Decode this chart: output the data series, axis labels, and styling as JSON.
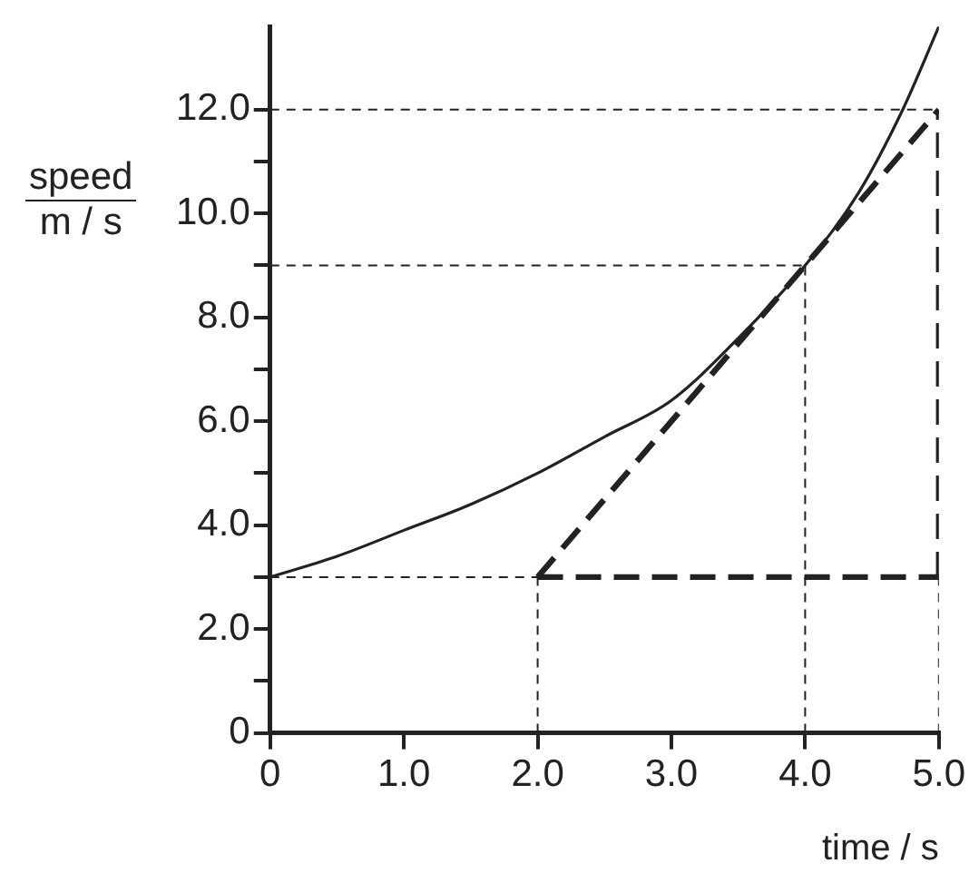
{
  "chart_data": {
    "type": "line",
    "xlabel": "time / s",
    "ylabel": "speed\nm / s",
    "xlim": [
      0,
      5
    ],
    "ylim": [
      0,
      13.6
    ],
    "xticks": [
      0,
      {
        "value": 1,
        "label": "1.0"
      },
      {
        "value": 2,
        "label": "2.0"
      },
      {
        "value": 3,
        "label": "3.0"
      },
      {
        "value": 4,
        "label": "4.0"
      },
      {
        "value": 5,
        "label": "5.0"
      }
    ],
    "yticks": [
      0,
      {
        "value": 1,
        "label": null
      },
      {
        "value": 2,
        "label": "2.0"
      },
      {
        "value": 3,
        "label": null
      },
      {
        "value": 4,
        "label": "4.0"
      },
      {
        "value": 5,
        "label": null
      },
      {
        "value": 6,
        "label": "6.0"
      },
      {
        "value": 7,
        "label": null
      },
      {
        "value": 8,
        "label": "8.0"
      },
      {
        "value": 9,
        "label": null
      },
      {
        "value": 10,
        "label": "10.0"
      },
      {
        "value": 11,
        "label": null
      },
      {
        "value": 12,
        "label": "12.0"
      }
    ],
    "grid": false,
    "legend": false,
    "marker": "none",
    "series": [
      {
        "type": "line",
        "color": "#222222",
        "line_style": "solid",
        "x": [
          0,
          0.5,
          1,
          1.5,
          2,
          2.5,
          3,
          3.5,
          4,
          4.4,
          4.73,
          5
        ],
        "values": [
          3.0,
          3.4,
          3.9,
          4.4,
          5.0,
          5.7,
          6.4,
          7.6,
          9.0,
          10.4,
          12.0,
          13.6
        ]
      },
      {
        "type": "line",
        "color": "#222222",
        "line_style": "dashed",
        "x": [
          2,
          5
        ],
        "values": [
          3,
          12
        ]
      },
      {
        "type": "line",
        "color": "#222222",
        "line_style": "dashed",
        "x": [
          2,
          5
        ],
        "values": [
          3,
          3
        ]
      },
      {
        "type": "line",
        "color": "#222222",
        "line_style": "dashed",
        "x": [
          5,
          5
        ],
        "values": [
          3,
          12
        ]
      },
      {
        "type": "line",
        "color": "#222222",
        "line_style": "dotted",
        "x": [
          0,
          5
        ],
        "values": [
          12,
          12
        ]
      },
      {
        "type": "line",
        "color": "#222222",
        "line_style": "dotted",
        "x": [
          0,
          4
        ],
        "values": [
          9,
          9
        ]
      },
      {
        "type": "line",
        "color": "#222222",
        "line_style": "dotted",
        "x": [
          4,
          4
        ],
        "values": [
          0,
          9
        ]
      },
      {
        "type": "line",
        "color": "#222222",
        "line_style": "dotted",
        "x": [
          0,
          2
        ],
        "values": [
          3,
          3
        ]
      },
      {
        "type": "line",
        "color": "#222222",
        "line_style": "dotted",
        "x": [
          2,
          2
        ],
        "values": [
          0,
          3
        ]
      },
      {
        "type": "line",
        "color": "#222222",
        "line_style": "dotted",
        "x": [
          5,
          5
        ],
        "values": [
          0,
          3
        ]
      }
    ]
  }
}
